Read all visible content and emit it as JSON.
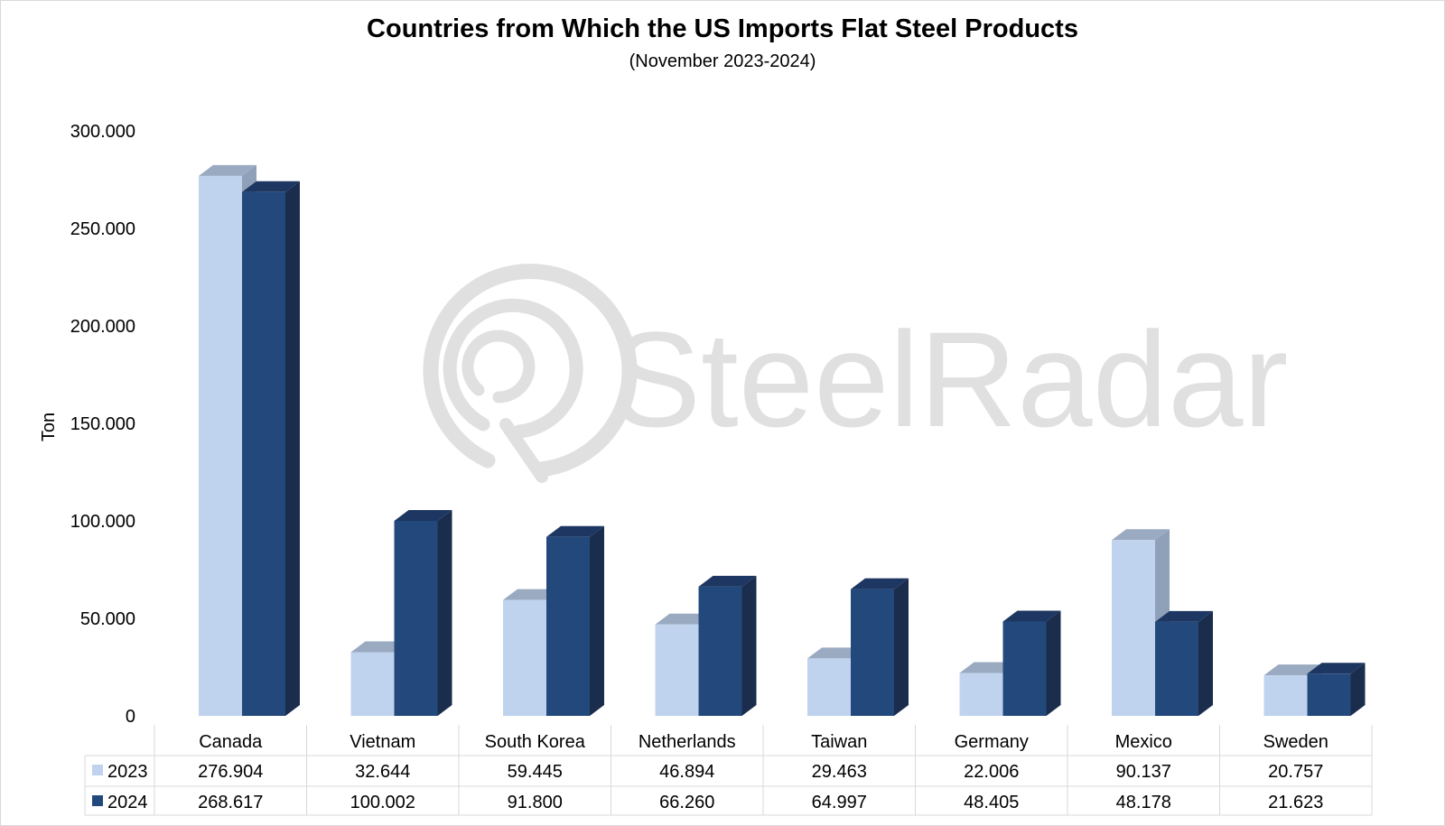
{
  "chart_data": {
    "type": "bar",
    "title": "Countries from Which the US Imports Flat Steel Products",
    "subtitle": "(November 2023-2024)",
    "ylabel": "Ton",
    "ylim": [
      0,
      300000
    ],
    "yticks": [
      0,
      50000,
      100000,
      150000,
      200000,
      250000,
      300000
    ],
    "ytick_labels": [
      "0",
      "50.000",
      "100.000",
      "150.000",
      "200.000",
      "250.000",
      "300.000"
    ],
    "categories": [
      "Canada",
      "Vietnam",
      "South Korea",
      "Netherlands",
      "Taiwan",
      "Germany",
      "Mexico",
      "Sweden"
    ],
    "series": [
      {
        "name": "2023",
        "color": "#c0d3ee",
        "values": [
          276904,
          32644,
          59445,
          46894,
          29463,
          22006,
          90137,
          20757
        ],
        "labels": [
          "276.904",
          "32.644",
          "59.445",
          "46.894",
          "29.463",
          "22.006",
          "90.137",
          "20.757"
        ]
      },
      {
        "name": "2024",
        "color": "#23497c",
        "values": [
          268617,
          100002,
          91800,
          66260,
          64997,
          48405,
          48178,
          21623
        ],
        "labels": [
          "268.617",
          "100.002",
          "91.800",
          "66.260",
          "64.997",
          "48.405",
          "48.178",
          "21.623"
        ]
      }
    ],
    "legend": "data-table",
    "grid": false
  },
  "watermark": {
    "text": "SteelRadar",
    "color": "#e0e0e0"
  }
}
